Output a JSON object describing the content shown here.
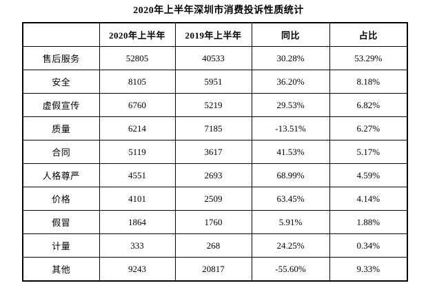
{
  "title": "2020年上半年深圳市消费投诉性质统计",
  "table": {
    "columns": [
      "",
      "2020年上半年",
      "2019年上半年",
      "同比",
      "占比"
    ],
    "rows": [
      {
        "label": "售后服务",
        "v2020": "52805",
        "v2019": "40533",
        "yoy": "30.28%",
        "share": "53.29%"
      },
      {
        "label": "安全",
        "v2020": "8105",
        "v2019": "5951",
        "yoy": "36.20%",
        "share": "8.18%"
      },
      {
        "label": "虚假宣传",
        "v2020": "6760",
        "v2019": "5219",
        "yoy": "29.53%",
        "share": "6.82%"
      },
      {
        "label": "质量",
        "v2020": "6214",
        "v2019": "7185",
        "yoy": "-13.51%",
        "share": "6.27%"
      },
      {
        "label": "合同",
        "v2020": "5119",
        "v2019": "3617",
        "yoy": "41.53%",
        "share": "5.17%"
      },
      {
        "label": "人格尊严",
        "v2020": "4551",
        "v2019": "2693",
        "yoy": "68.99%",
        "share": "4.59%"
      },
      {
        "label": "价格",
        "v2020": "4101",
        "v2019": "2509",
        "yoy": "63.45%",
        "share": "4.14%"
      },
      {
        "label": "假冒",
        "v2020": "1864",
        "v2019": "1760",
        "yoy": "5.91%",
        "share": "1.88%"
      },
      {
        "label": "计量",
        "v2020": "333",
        "v2019": "268",
        "yoy": "24.25%",
        "share": "0.34%"
      },
      {
        "label": "其他",
        "v2020": "9243",
        "v2019": "20817",
        "yoy": "-55.60%",
        "share": "9.33%"
      }
    ]
  }
}
